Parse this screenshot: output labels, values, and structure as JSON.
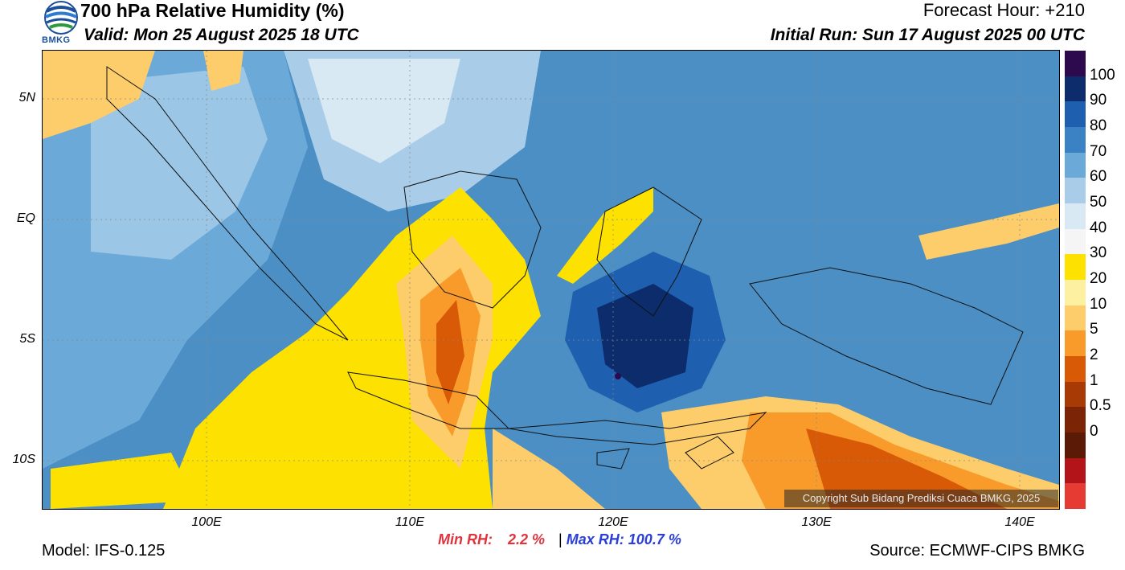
{
  "header": {
    "title": "700 hPa Relative Humidity (%)",
    "valid": "Valid: Mon 25 August 2025 18 UTC",
    "forecast_hour": "Forecast Hour: +210",
    "initial_run": "Initial Run: Sun 17 August 2025 00 UTC"
  },
  "logo": {
    "text": "BMKG",
    "icon": "bmkg-logo-icon"
  },
  "map": {
    "lat_labels": [
      "5N",
      "EQ",
      "5S",
      "10S"
    ],
    "lon_labels": [
      "100E",
      "110E",
      "120E",
      "130E",
      "140E"
    ],
    "copyright": "Copyright Sub Bidang Prediksi Cuaca BMKG, 2025"
  },
  "colorbar": {
    "labels": [
      "100",
      "90",
      "80",
      "70",
      "60",
      "50",
      "40",
      "30",
      "20",
      "10",
      "5",
      "2",
      "1",
      "0.5",
      "0"
    ],
    "colors": [
      "#2d0a4e",
      "#0c2c6b",
      "#1f5fb0",
      "#3b82c4",
      "#6aa9d8",
      "#a9cde8",
      "#d9e9f4",
      "#f5f5f5",
      "#fde100",
      "#fdf0a0",
      "#fdcd6b",
      "#f99b2b",
      "#d85a06",
      "#a83a05",
      "#7c2506",
      "#5a1a06",
      "#b3141a",
      "#e53b33"
    ]
  },
  "stats": {
    "min_label": "Min RH:",
    "min_value": "2.2 %",
    "separator": "|",
    "max_label": "Max RH:",
    "max_value": "100.7 %"
  },
  "footer": {
    "model": "Model: IFS-0.125",
    "source": "Source: ECMWF-CIPS BMKG"
  }
}
